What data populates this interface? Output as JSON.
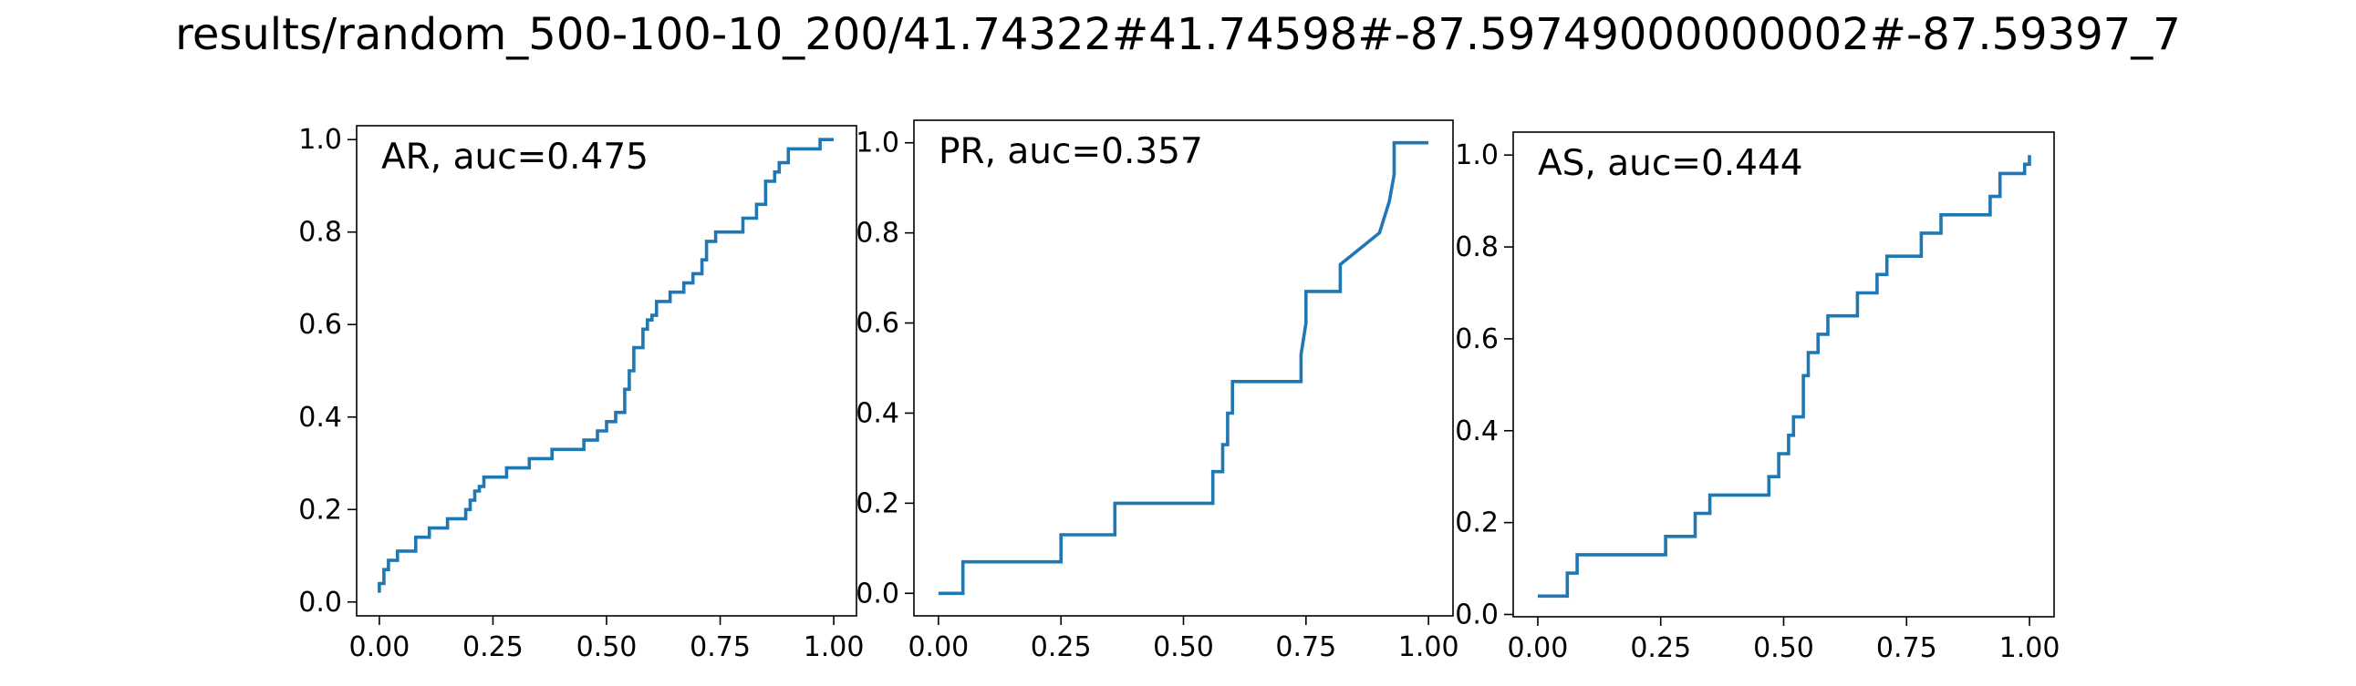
{
  "figure": {
    "title": "results/random_500-100-10_200/41.74322#41.74598#-87.59749000000002#-87.59397_7"
  },
  "chart_data": [
    {
      "type": "line",
      "label": "AR, auc=0.475",
      "xlim": [
        -0.05,
        1.05
      ],
      "ylim": [
        -0.03,
        1.03
      ],
      "xticks": [
        "0.00",
        "0.25",
        "0.50",
        "0.75",
        "1.00"
      ],
      "yticks": [
        "0.0",
        "0.2",
        "0.4",
        "0.6",
        "0.8",
        "1.0"
      ],
      "grid": false,
      "series": [
        {
          "color": "#1f77b4",
          "x": [
            0.0,
            0.0,
            0.01,
            0.01,
            0.02,
            0.02,
            0.04,
            0.04,
            0.08,
            0.08,
            0.11,
            0.11,
            0.15,
            0.15,
            0.19,
            0.19,
            0.2,
            0.2,
            0.21,
            0.21,
            0.22,
            0.22,
            0.23,
            0.23,
            0.28,
            0.28,
            0.33,
            0.33,
            0.38,
            0.38,
            0.45,
            0.45,
            0.48,
            0.48,
            0.5,
            0.5,
            0.52,
            0.52,
            0.54,
            0.54,
            0.55,
            0.55,
            0.56,
            0.56,
            0.58,
            0.58,
            0.59,
            0.59,
            0.6,
            0.6,
            0.61,
            0.61,
            0.64,
            0.64,
            0.67,
            0.67,
            0.69,
            0.69,
            0.71,
            0.71,
            0.72,
            0.72,
            0.74,
            0.74,
            0.8,
            0.8,
            0.83,
            0.83,
            0.85,
            0.85,
            0.87,
            0.87,
            0.88,
            0.88,
            0.9,
            0.9,
            0.97,
            0.97,
            1.0
          ],
          "y": [
            0.02,
            0.04,
            0.04,
            0.07,
            0.07,
            0.09,
            0.09,
            0.11,
            0.11,
            0.14,
            0.14,
            0.16,
            0.16,
            0.18,
            0.18,
            0.2,
            0.2,
            0.22,
            0.22,
            0.24,
            0.24,
            0.25,
            0.25,
            0.27,
            0.27,
            0.29,
            0.29,
            0.31,
            0.31,
            0.33,
            0.33,
            0.35,
            0.35,
            0.37,
            0.37,
            0.39,
            0.39,
            0.41,
            0.41,
            0.46,
            0.46,
            0.5,
            0.5,
            0.55,
            0.55,
            0.59,
            0.59,
            0.61,
            0.61,
            0.62,
            0.62,
            0.65,
            0.65,
            0.67,
            0.67,
            0.69,
            0.69,
            0.71,
            0.71,
            0.74,
            0.74,
            0.78,
            0.78,
            0.8,
            0.8,
            0.83,
            0.83,
            0.86,
            0.86,
            0.91,
            0.91,
            0.93,
            0.93,
            0.95,
            0.95,
            0.98,
            0.98,
            1.0,
            1.0
          ]
        }
      ]
    },
    {
      "type": "line",
      "label": "PR, auc=0.357",
      "xlim": [
        -0.05,
        1.05
      ],
      "ylim": [
        -0.05,
        1.05
      ],
      "xticks": [
        "0.00",
        "0.25",
        "0.50",
        "0.75",
        "1.00"
      ],
      "yticks": [
        "0.0",
        "0.2",
        "0.4",
        "0.6",
        "0.8",
        "1.0"
      ],
      "grid": false,
      "series": [
        {
          "color": "#1f77b4",
          "x": [
            0.0,
            0.05,
            0.05,
            0.25,
            0.25,
            0.36,
            0.36,
            0.56,
            0.56,
            0.58,
            0.58,
            0.59,
            0.59,
            0.6,
            0.6,
            0.74,
            0.74,
            0.75,
            0.75,
            0.82,
            0.82,
            0.9,
            0.9,
            0.92,
            0.92,
            0.93,
            0.93,
            1.0
          ],
          "y": [
            0.0,
            0.0,
            0.07,
            0.07,
            0.13,
            0.13,
            0.2,
            0.2,
            0.27,
            0.27,
            0.33,
            0.33,
            0.4,
            0.4,
            0.47,
            0.47,
            0.53,
            0.6,
            0.67,
            0.67,
            0.73,
            0.8,
            0.8,
            0.87,
            0.87,
            0.93,
            1.0,
            1.0
          ]
        }
      ]
    },
    {
      "type": "line",
      "label": "AS, auc=0.444",
      "xlim": [
        -0.05,
        1.05
      ],
      "ylim": [
        -0.005,
        1.05
      ],
      "xticks": [
        "0.00",
        "0.25",
        "0.50",
        "0.75",
        "1.00"
      ],
      "yticks": [
        "0.0",
        "0.2",
        "0.4",
        "0.6",
        "0.8",
        "1.0"
      ],
      "grid": false,
      "series": [
        {
          "color": "#1f77b4",
          "x": [
            0.0,
            0.06,
            0.06,
            0.08,
            0.08,
            0.26,
            0.26,
            0.32,
            0.32,
            0.35,
            0.35,
            0.47,
            0.47,
            0.49,
            0.49,
            0.51,
            0.51,
            0.52,
            0.52,
            0.54,
            0.54,
            0.55,
            0.55,
            0.57,
            0.57,
            0.59,
            0.59,
            0.65,
            0.65,
            0.69,
            0.69,
            0.71,
            0.71,
            0.78,
            0.78,
            0.82,
            0.82,
            0.92,
            0.92,
            0.94,
            0.94,
            0.99,
            0.99,
            1.0,
            1.0
          ],
          "y": [
            0.04,
            0.04,
            0.09,
            0.09,
            0.13,
            0.13,
            0.17,
            0.17,
            0.22,
            0.22,
            0.26,
            0.26,
            0.3,
            0.3,
            0.35,
            0.35,
            0.39,
            0.39,
            0.43,
            0.43,
            0.52,
            0.52,
            0.57,
            0.57,
            0.61,
            0.61,
            0.65,
            0.65,
            0.7,
            0.7,
            0.74,
            0.74,
            0.78,
            0.78,
            0.83,
            0.83,
            0.87,
            0.87,
            0.91,
            0.91,
            0.96,
            0.96,
            0.98,
            0.98,
            1.0
          ]
        }
      ]
    }
  ]
}
